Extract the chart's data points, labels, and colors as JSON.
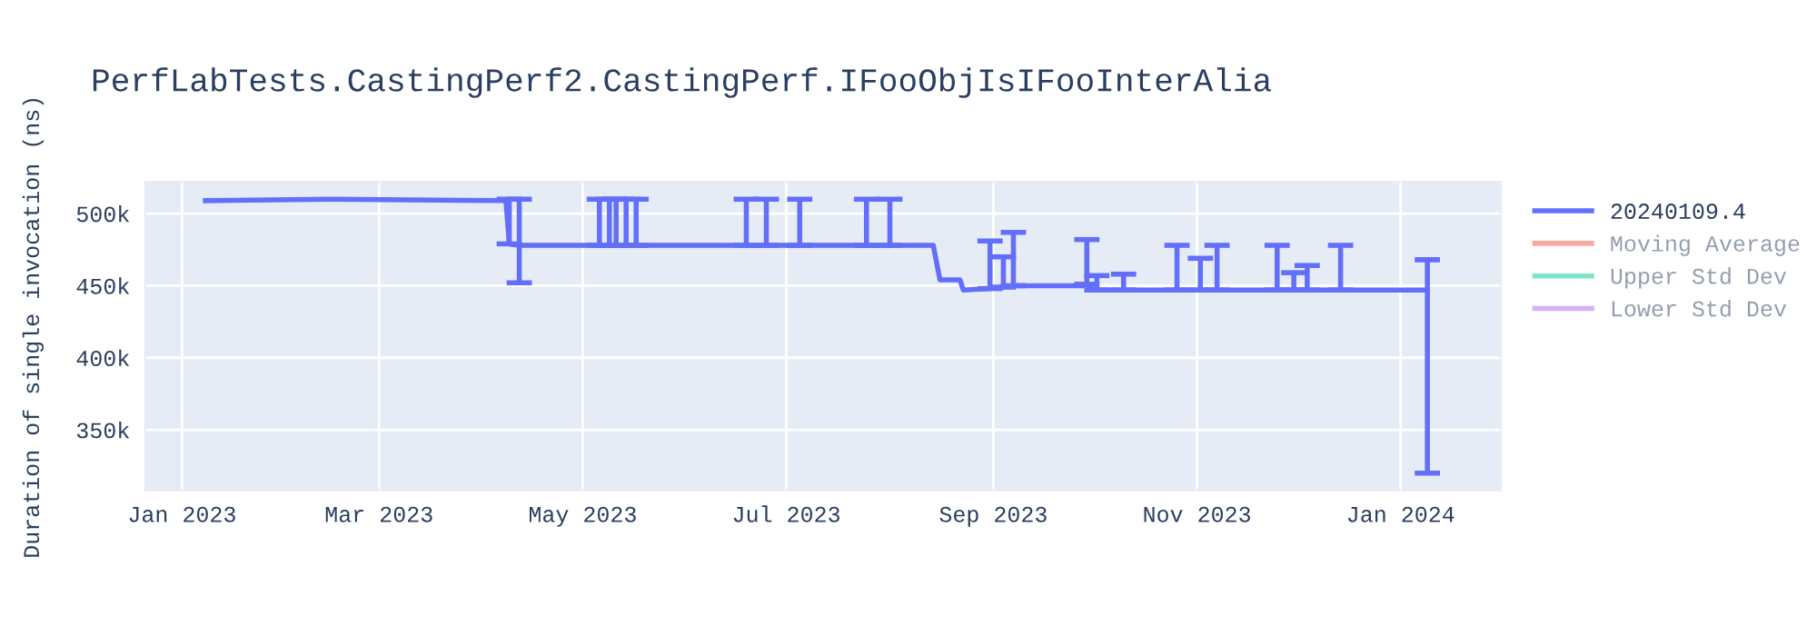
{
  "chart_data": {
    "type": "line",
    "title": "PerfLabTests.CastingPerf2.CastingPerf.IFooObjIsIFooInterAlia",
    "ylabel": "Duration of single invocation (ns)",
    "x": [
      "2023-01-08",
      "2023-02-15",
      "2023-04-08",
      "2023-04-09",
      "2023-04-12",
      "2023-04-20",
      "2023-05-06",
      "2023-05-09",
      "2023-05-11",
      "2023-05-14",
      "2023-05-17",
      "2023-06-19",
      "2023-06-25",
      "2023-07-05",
      "2023-07-25",
      "2023-08-01",
      "2023-08-14",
      "2023-08-16",
      "2023-08-22",
      "2023-08-23",
      "2023-08-31",
      "2023-09-04",
      "2023-09-07",
      "2023-09-28",
      "2023-09-29",
      "2023-10-01",
      "2023-10-02",
      "2023-10-10",
      "2023-10-26",
      "2023-11-02",
      "2023-11-07",
      "2023-11-25",
      "2023-11-30",
      "2023-12-04",
      "2023-12-14",
      "2024-01-09"
    ],
    "series": [
      {
        "name": "20240109.4",
        "color": "#636efa",
        "values": [
          509000,
          510000,
          509000,
          479000,
          478000,
          478000,
          478000,
          478000,
          478000,
          478000,
          478000,
          478000,
          478000,
          478000,
          478000,
          478000,
          478000,
          454000,
          454000,
          447000,
          448000,
          449000,
          450000,
          450000,
          451000,
          447000,
          447000,
          447000,
          447000,
          447000,
          447000,
          447000,
          447000,
          447000,
          447000,
          447000
        ],
        "errors": [
          null,
          null,
          null,
          [
            479000,
            510000
          ],
          [
            452000,
            510000
          ],
          null,
          [
            478000,
            510000
          ],
          [
            478000,
            510000
          ],
          [
            478000,
            510000
          ],
          [
            478000,
            510000
          ],
          [
            478000,
            510000
          ],
          [
            478000,
            510000
          ],
          [
            478000,
            510000
          ],
          [
            478000,
            510000
          ],
          [
            478000,
            510000
          ],
          [
            478000,
            510000
          ],
          null,
          null,
          null,
          null,
          [
            448000,
            481000
          ],
          [
            449000,
            470000
          ],
          [
            450000,
            487000
          ],
          null,
          [
            451000,
            482000
          ],
          null,
          [
            447000,
            457000
          ],
          [
            447000,
            458000
          ],
          [
            447000,
            478000
          ],
          [
            447000,
            469000
          ],
          [
            447000,
            478000
          ],
          [
            447000,
            478000
          ],
          [
            447000,
            459000
          ],
          [
            447000,
            464000
          ],
          [
            447000,
            478000
          ],
          [
            320000,
            468000
          ]
        ]
      },
      {
        "name": "Moving Average",
        "color": "#ef553b",
        "values": [
          null,
          null,
          null,
          null,
          null,
          null,
          null,
          null,
          null,
          null,
          null,
          null,
          null,
          null,
          null,
          null,
          null,
          null,
          null,
          null,
          null,
          null,
          null,
          null,
          null,
          null,
          null,
          null,
          null,
          null,
          null,
          null,
          null,
          null,
          null,
          null
        ]
      },
      {
        "name": "Upper Std Dev",
        "color": "#00cc96",
        "values": [
          null,
          null,
          null,
          null,
          null,
          null,
          null,
          null,
          null,
          null,
          null,
          null,
          null,
          null,
          null,
          null,
          null,
          null,
          null,
          null,
          null,
          null,
          null,
          null,
          null,
          null,
          null,
          null,
          null,
          null,
          null,
          null,
          null,
          null,
          null,
          null
        ]
      },
      {
        "name": "Lower Std Dev",
        "color": "#ab63fa",
        "values": [
          null,
          null,
          null,
          null,
          null,
          null,
          null,
          null,
          null,
          null,
          null,
          null,
          null,
          null,
          null,
          null,
          null,
          null,
          null,
          null,
          null,
          null,
          null,
          null,
          null,
          null,
          null,
          null,
          null,
          null,
          null,
          null,
          null,
          null,
          null,
          null
        ]
      }
    ],
    "xlim": [
      "2022-12-21",
      "2024-01-31"
    ],
    "xticks": [
      {
        "value": "2023-01-01",
        "label": "Jan 2023"
      },
      {
        "value": "2023-03-01",
        "label": "Mar 2023"
      },
      {
        "value": "2023-05-01",
        "label": "May 2023"
      },
      {
        "value": "2023-07-01",
        "label": "Jul 2023"
      },
      {
        "value": "2023-09-01",
        "label": "Sep 2023"
      },
      {
        "value": "2023-11-01",
        "label": "Nov 2023"
      },
      {
        "value": "2024-01-01",
        "label": "Jan 2024"
      }
    ],
    "ylim": [
      308000,
      522000
    ],
    "yticks": [
      {
        "value": 350000,
        "label": "350k"
      },
      {
        "value": 400000,
        "label": "400k"
      },
      {
        "value": 450000,
        "label": "450k"
      },
      {
        "value": 500000,
        "label": "500k"
      }
    ],
    "grid": true,
    "legend": "right",
    "marker": "none",
    "line_style": "solid"
  }
}
